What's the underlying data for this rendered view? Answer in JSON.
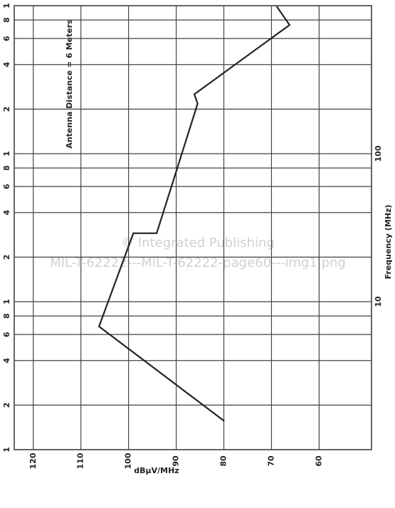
{
  "chart_data": {
    "type": "line",
    "xlabel": "dBμV/MHz",
    "ylabel": "Frequency (MHz)",
    "annotation": "Antenna Distance = 6 Meters",
    "watermark": [
      "© Integrated Publishing",
      "MIL-T-62222---MIL-T-62222-page60---img1.png"
    ],
    "xlim": [
      124,
      49
    ],
    "xticks": [
      120,
      110,
      100,
      90,
      80,
      70,
      60
    ],
    "ylim": [
      1,
      1000
    ],
    "log_y": true,
    "yticks": [
      1,
      2,
      4,
      6,
      8,
      {
        "value": 10,
        "label": "1"
      },
      {
        "value": 20,
        "label": "2"
      },
      {
        "value": 40,
        "label": "4"
      },
      {
        "value": 60,
        "label": "6"
      },
      {
        "value": 80,
        "label": "8"
      },
      {
        "value": 100,
        "label": "1"
      },
      {
        "value": 200,
        "label": "2"
      },
      {
        "value": 400,
        "label": "4"
      },
      {
        "value": 600,
        "label": "6"
      },
      {
        "value": 800,
        "label": "8"
      },
      {
        "value": 1000,
        "label": "1"
      }
    ],
    "right_ticks": [
      10,
      100
    ],
    "grid": true,
    "series": [
      {
        "color": "#222222",
        "x": [
          79.9,
          106.2,
          99,
          94.1,
          85.5,
          86.2,
          66.2,
          68.9
        ],
        "values": [
          1.56,
          6.8,
          29,
          29,
          218,
          252,
          741,
          989
        ]
      }
    ]
  }
}
